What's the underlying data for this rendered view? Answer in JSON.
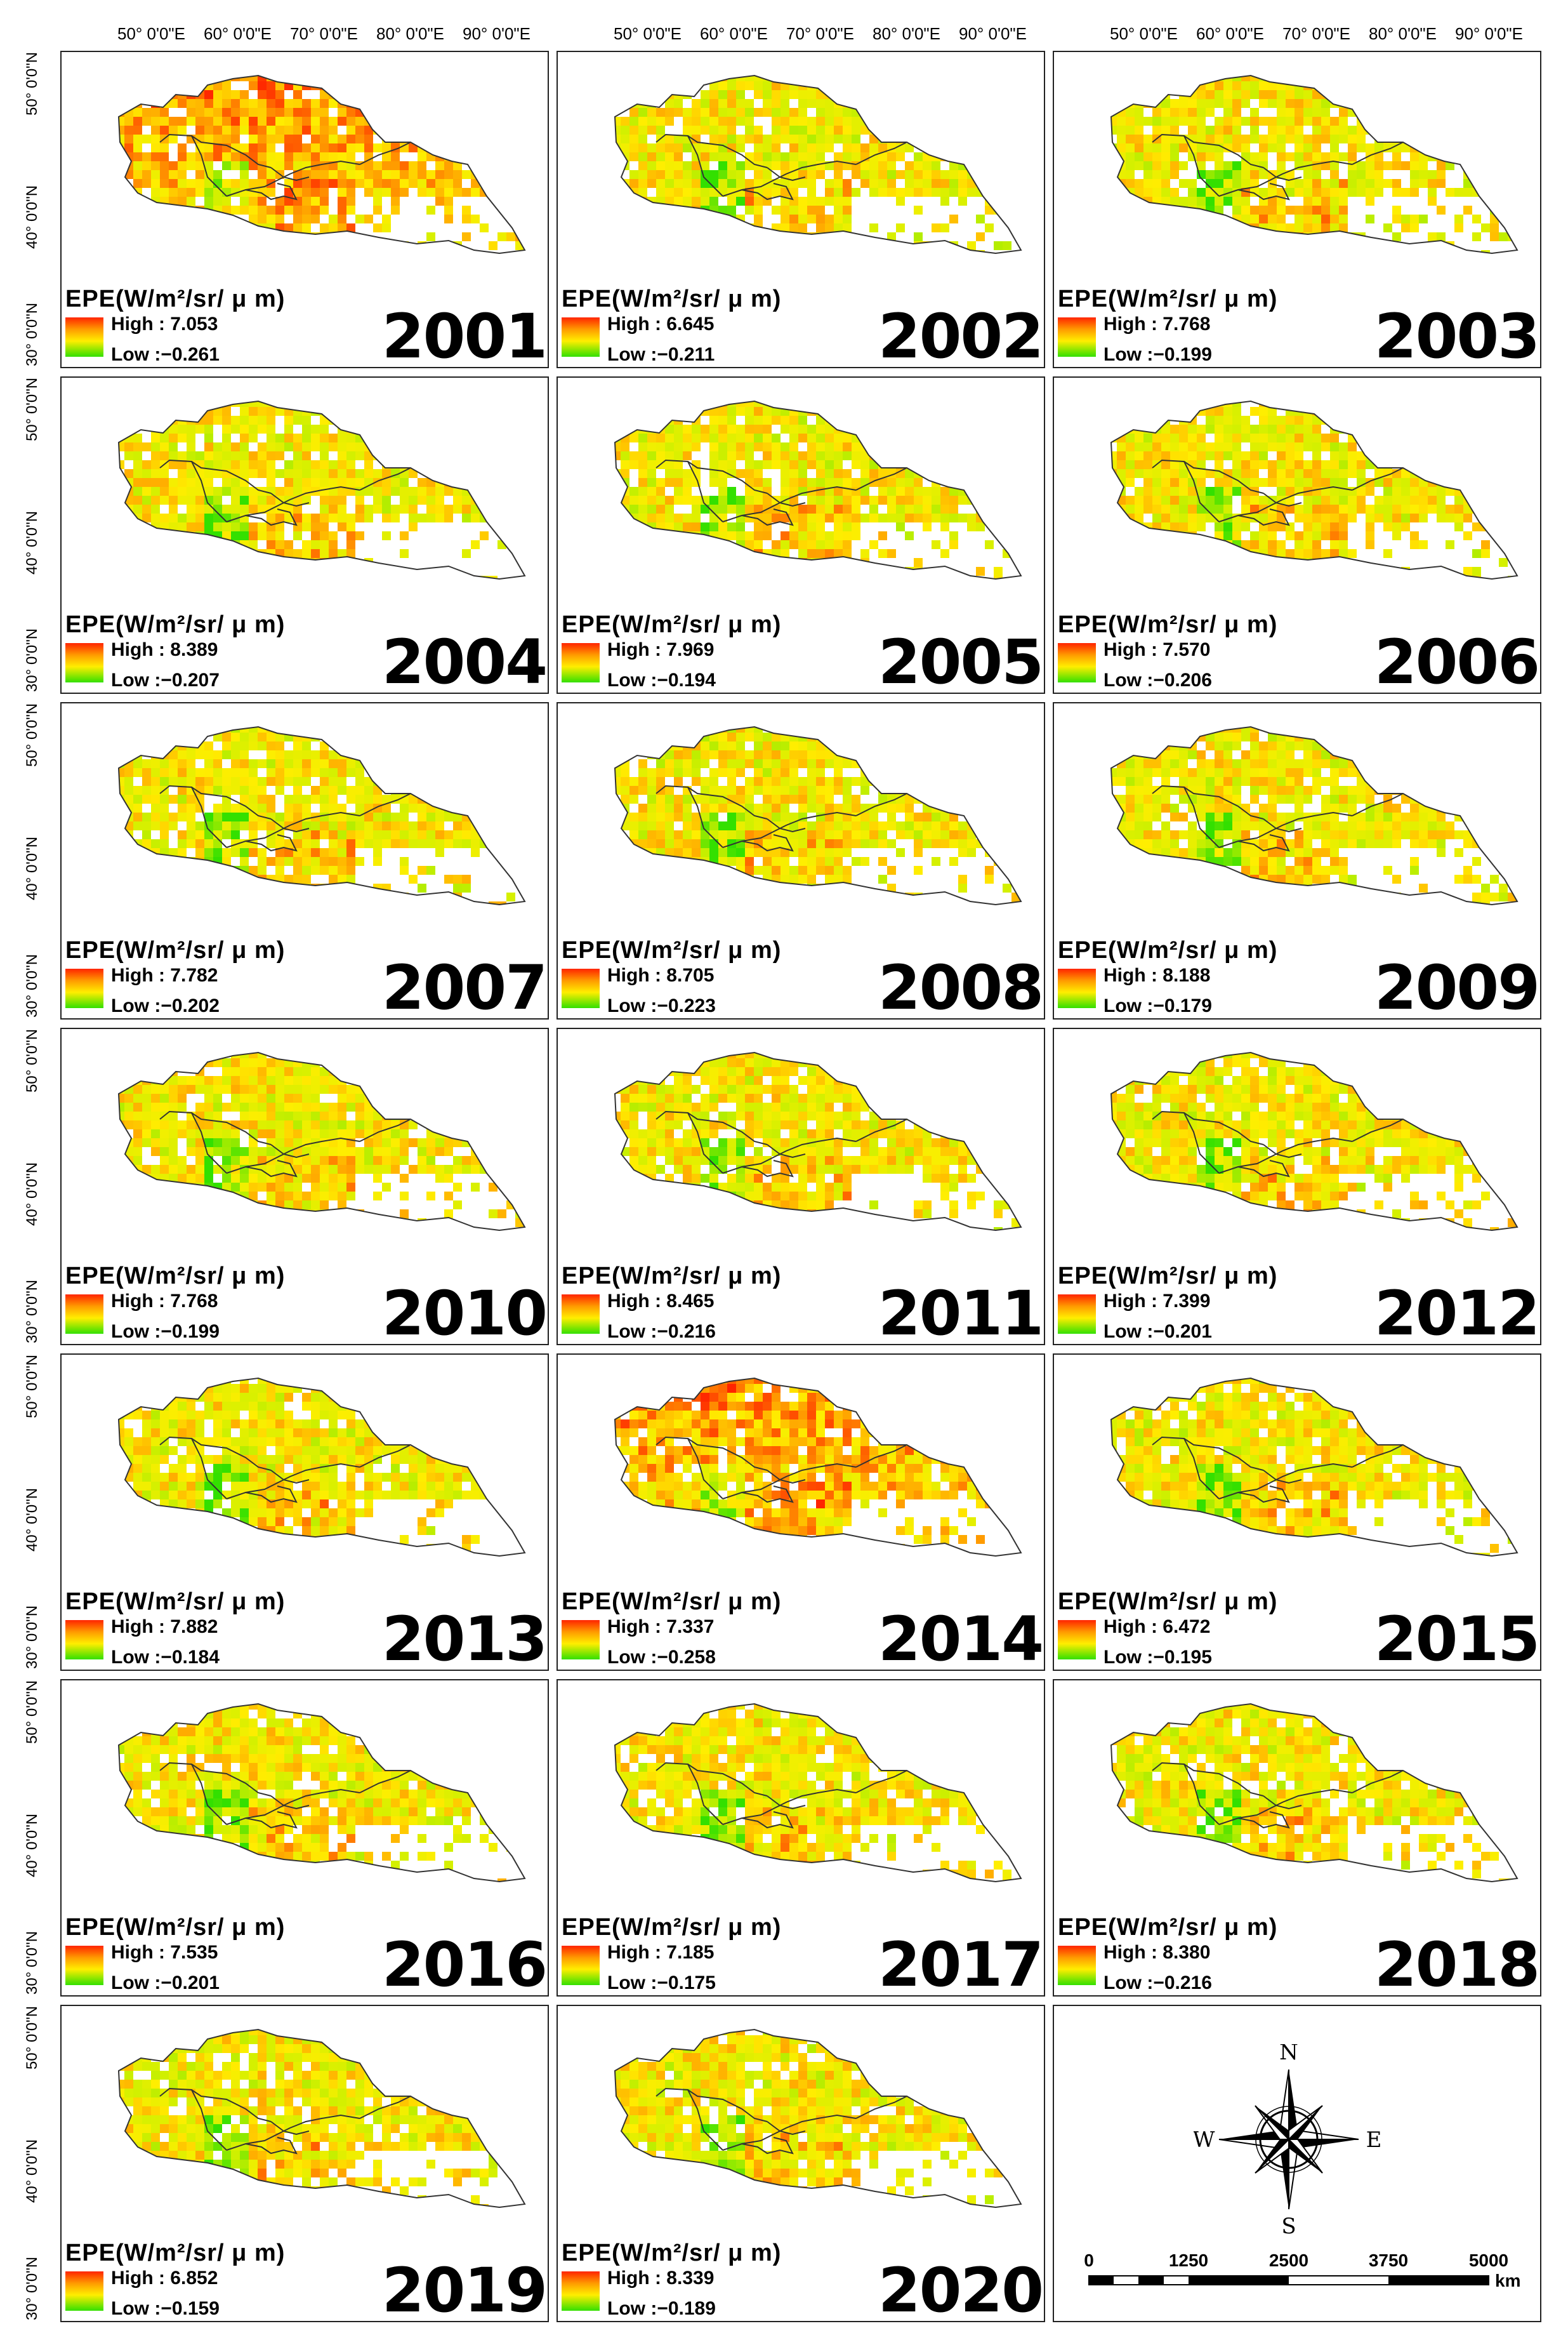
{
  "legend_title": "EPE(W/m²/sr/ μ m)",
  "axis": {
    "lon_labels": [
      "50° 0'0\"E",
      "60° 0'0\"E",
      "70° 0'0\"E",
      "80° 0'0\"E",
      "90° 0'0\"E"
    ],
    "lat_labels": [
      "50° 0'0\"N",
      "40° 0'0\"N",
      "30° 0'0\"N"
    ]
  },
  "colors": {
    "high": "#ff2400",
    "mid": "#ffee00",
    "low": "#33e000",
    "outline": "#333333"
  },
  "panels": [
    {
      "year": "2001",
      "high": "High : 7.053",
      "low": "Low :−0.261"
    },
    {
      "year": "2002",
      "high": "High : 6.645",
      "low": "Low :−0.211"
    },
    {
      "year": "2003",
      "high": "High : 7.768",
      "low": "Low :−0.199"
    },
    {
      "year": "2004",
      "high": "High : 8.389",
      "low": "Low :−0.207"
    },
    {
      "year": "2005",
      "high": "High : 7.969",
      "low": "Low :−0.194"
    },
    {
      "year": "2006",
      "high": "High : 7.570",
      "low": "Low :−0.206"
    },
    {
      "year": "2007",
      "high": "High : 7.782",
      "low": "Low :−0.202"
    },
    {
      "year": "2008",
      "high": "High : 8.705",
      "low": "Low :−0.223"
    },
    {
      "year": "2009",
      "high": "High : 8.188",
      "low": "Low :−0.179"
    },
    {
      "year": "2010",
      "high": "High : 7.768",
      "low": "Low :−0.199"
    },
    {
      "year": "2011",
      "high": "High : 8.465",
      "low": "Low :−0.216"
    },
    {
      "year": "2012",
      "high": "High : 7.399",
      "low": "Low :−0.201"
    },
    {
      "year": "2013",
      "high": "High : 7.882",
      "low": "Low :−0.184"
    },
    {
      "year": "2014",
      "high": "High : 7.337",
      "low": "Low :−0.258"
    },
    {
      "year": "2015",
      "high": "High : 6.472",
      "low": "Low :−0.195"
    },
    {
      "year": "2016",
      "high": "High : 7.535",
      "low": "Low :−0.201"
    },
    {
      "year": "2017",
      "high": "High : 7.185",
      "low": "Low :−0.175"
    },
    {
      "year": "2018",
      "high": "High : 8.380",
      "low": "Low :−0.216"
    },
    {
      "year": "2019",
      "high": "High : 6.852",
      "low": "Low :−0.159"
    },
    {
      "year": "2020",
      "high": "High : 8.339",
      "low": "Low :−0.189"
    }
  ],
  "compass": {
    "n": "N",
    "s": "S",
    "e": "E",
    "w": "W",
    "icon": "compass-rose-icon"
  },
  "scale_bar": {
    "ticks": [
      "0",
      "1250",
      "2500",
      "3750",
      "5000"
    ],
    "unit": "km"
  }
}
